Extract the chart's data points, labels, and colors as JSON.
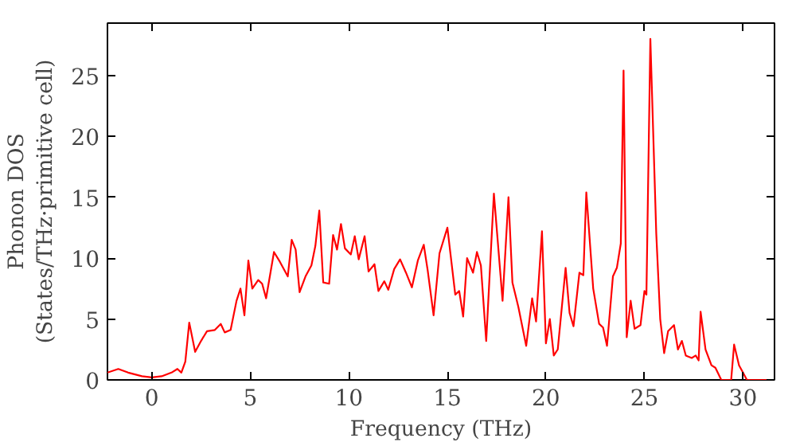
{
  "chart_data": {
    "type": "line",
    "xlabel": "Frequency (THz)",
    "ylabel": "Phonon DOS\n(States/THz·primitive cell)",
    "x": [
      -2.25,
      -1.7,
      -1.2,
      -0.5,
      0,
      0.5,
      1.0,
      1.3,
      1.5,
      1.7,
      1.9,
      2.2,
      2.5,
      2.8,
      3.2,
      3.5,
      3.7,
      4.0,
      4.3,
      4.5,
      4.7,
      4.9,
      5.1,
      5.4,
      5.6,
      5.8,
      6.2,
      6.5,
      6.9,
      7.1,
      7.3,
      7.5,
      7.8,
      8.1,
      8.3,
      8.5,
      8.7,
      9.0,
      9.2,
      9.4,
      9.6,
      9.8,
      10.1,
      10.3,
      10.5,
      10.8,
      11.0,
      11.3,
      11.5,
      11.8,
      12.0,
      12.3,
      12.6,
      12.9,
      13.2,
      13.5,
      13.8,
      14.0,
      14.3,
      14.6,
      15.0,
      15.4,
      15.6,
      15.8,
      16.0,
      16.3,
      16.5,
      16.7,
      16.97,
      17.36,
      17.8,
      18.1,
      18.3,
      18.6,
      19.0,
      19.3,
      19.5,
      19.8,
      20.0,
      20.2,
      20.4,
      20.6,
      21.0,
      21.2,
      21.4,
      21.7,
      21.9,
      22.05,
      22.4,
      22.7,
      22.9,
      23.1,
      23.4,
      23.6,
      23.8,
      23.94,
      24.1,
      24.3,
      24.5,
      24.8,
      25.0,
      25.1,
      25.3,
      25.6,
      25.8,
      26.0,
      26.2,
      26.5,
      26.7,
      26.9,
      27.1,
      27.4,
      27.6,
      27.75,
      27.85,
      28.1,
      28.4,
      28.6,
      28.9,
      29.4,
      29.55,
      29.8,
      30.0,
      30.2,
      31.6
    ],
    "series": [
      {
        "color": "#ff0000",
        "values": [
          0.6,
          0.9,
          0.6,
          0.3,
          0.2,
          0.3,
          0.6,
          0.9,
          0.6,
          1.5,
          4.7,
          2.3,
          3.2,
          4.0,
          4.1,
          4.6,
          3.9,
          4.1,
          6.5,
          7.5,
          5.3,
          9.8,
          7.5,
          8.2,
          7.9,
          6.7,
          10.5,
          9.7,
          8.5,
          11.5,
          10.7,
          7.2,
          8.5,
          9.4,
          11.0,
          13.9,
          8.0,
          7.9,
          11.9,
          10.7,
          12.8,
          10.8,
          10.3,
          11.8,
          9.9,
          11.8,
          8.9,
          9.5,
          7.3,
          8.1,
          7.4,
          9.1,
          9.9,
          8.8,
          7.6,
          9.8,
          11.1,
          9.0,
          5.3,
          10.4,
          12.5,
          7.0,
          7.3,
          5.2,
          10.0,
          8.8,
          10.5,
          9.4,
          3.2,
          15.3,
          6.5,
          15.0,
          8.0,
          6.0,
          2.8,
          6.7,
          4.8,
          12.2,
          3.0,
          5.0,
          2.0,
          2.5,
          9.2,
          5.5,
          4.4,
          8.8,
          8.6,
          15.4,
          7.5,
          4.6,
          4.3,
          2.8,
          8.5,
          9.2,
          11.2,
          25.4,
          3.5,
          6.5,
          4.2,
          4.5,
          7.3,
          7.0,
          28.0,
          12.0,
          5.0,
          2.2,
          4.0,
          4.5,
          2.5,
          3.2,
          2.0,
          1.8,
          2.0,
          1.6,
          5.6,
          2.5,
          1.2,
          1.0,
          0,
          0,
          2.9,
          1.2,
          0.6,
          0,
          0
        ]
      }
    ],
    "xlim": [
      -2.25,
      31.6
    ],
    "ylim": [
      0,
      29.3
    ],
    "xticks": [
      0,
      5,
      10,
      15,
      20,
      25,
      30
    ],
    "yticks": [
      0,
      5,
      10,
      15,
      20,
      25
    ],
    "grid": false
  }
}
